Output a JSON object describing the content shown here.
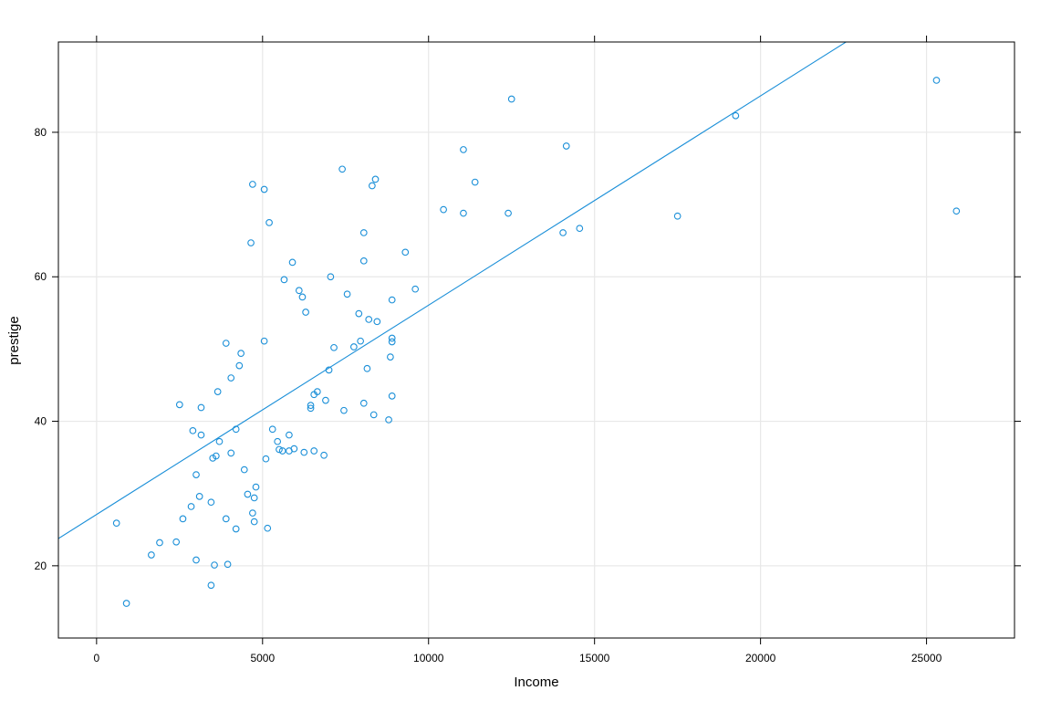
{
  "chart_data": {
    "type": "scatter",
    "title": "",
    "xlabel": "Income",
    "ylabel": "prestige",
    "xlim": [
      -1150,
      27650
    ],
    "ylim": [
      10,
      92.5
    ],
    "x_ticks": [
      0,
      5000,
      10000,
      15000,
      20000,
      25000
    ],
    "x_tick_labels": [
      "0",
      "5000",
      "10000",
      "15000",
      "20000",
      "25000"
    ],
    "y_ticks": [
      20,
      40,
      60,
      80
    ],
    "y_tick_labels": [
      "20",
      "40",
      "60",
      "80"
    ],
    "grid": true,
    "colors": {
      "points": "#1a8fd8",
      "line": "#1a8fd8",
      "grid": "#e8e8e8",
      "frame": "#000000"
    },
    "regression_line": {
      "intercept": 27.1,
      "slope": 0.002897
    },
    "points": [
      {
        "x": 600,
        "y": 25.9
      },
      {
        "x": 900,
        "y": 14.8
      },
      {
        "x": 1650,
        "y": 21.5
      },
      {
        "x": 1900,
        "y": 23.2
      },
      {
        "x": 2400,
        "y": 23.3
      },
      {
        "x": 2500,
        "y": 42.3
      },
      {
        "x": 2600,
        "y": 26.5
      },
      {
        "x": 2850,
        "y": 28.2
      },
      {
        "x": 2900,
        "y": 38.7
      },
      {
        "x": 3000,
        "y": 20.8
      },
      {
        "x": 3000,
        "y": 32.6
      },
      {
        "x": 3100,
        "y": 29.6
      },
      {
        "x": 3150,
        "y": 41.9
      },
      {
        "x": 3150,
        "y": 38.1
      },
      {
        "x": 3450,
        "y": 17.3
      },
      {
        "x": 3450,
        "y": 28.8
      },
      {
        "x": 3500,
        "y": 34.9
      },
      {
        "x": 3550,
        "y": 20.1
      },
      {
        "x": 3600,
        "y": 35.2
      },
      {
        "x": 3650,
        "y": 44.1
      },
      {
        "x": 3700,
        "y": 37.2
      },
      {
        "x": 3900,
        "y": 50.8
      },
      {
        "x": 3900,
        "y": 26.5
      },
      {
        "x": 3950,
        "y": 20.2
      },
      {
        "x": 4050,
        "y": 46.0
      },
      {
        "x": 4050,
        "y": 35.6
      },
      {
        "x": 4200,
        "y": 38.9
      },
      {
        "x": 4200,
        "y": 25.1
      },
      {
        "x": 4300,
        "y": 47.7
      },
      {
        "x": 4350,
        "y": 49.4
      },
      {
        "x": 4450,
        "y": 33.3
      },
      {
        "x": 4550,
        "y": 29.9
      },
      {
        "x": 4650,
        "y": 64.7
      },
      {
        "x": 4700,
        "y": 72.8
      },
      {
        "x": 4700,
        "y": 27.3
      },
      {
        "x": 4750,
        "y": 29.4
      },
      {
        "x": 4750,
        "y": 26.1
      },
      {
        "x": 4800,
        "y": 30.9
      },
      {
        "x": 5050,
        "y": 51.1
      },
      {
        "x": 5050,
        "y": 72.1
      },
      {
        "x": 5100,
        "y": 34.8
      },
      {
        "x": 5150,
        "y": 25.2
      },
      {
        "x": 5200,
        "y": 67.5
      },
      {
        "x": 5300,
        "y": 38.9
      },
      {
        "x": 5450,
        "y": 37.2
      },
      {
        "x": 5500,
        "y": 36.1
      },
      {
        "x": 5600,
        "y": 35.9
      },
      {
        "x": 5650,
        "y": 59.6
      },
      {
        "x": 5800,
        "y": 38.1
      },
      {
        "x": 5800,
        "y": 35.9
      },
      {
        "x": 5900,
        "y": 62.0
      },
      {
        "x": 5950,
        "y": 36.2
      },
      {
        "x": 6100,
        "y": 58.1
      },
      {
        "x": 6200,
        "y": 57.2
      },
      {
        "x": 6250,
        "y": 35.7
      },
      {
        "x": 6300,
        "y": 55.1
      },
      {
        "x": 6450,
        "y": 42.2
      },
      {
        "x": 6450,
        "y": 41.8
      },
      {
        "x": 6550,
        "y": 43.7
      },
      {
        "x": 6550,
        "y": 35.9
      },
      {
        "x": 6650,
        "y": 44.1
      },
      {
        "x": 6850,
        "y": 35.3
      },
      {
        "x": 6900,
        "y": 42.9
      },
      {
        "x": 7000,
        "y": 47.1
      },
      {
        "x": 7050,
        "y": 60.0
      },
      {
        "x": 7150,
        "y": 50.2
      },
      {
        "x": 7400,
        "y": 74.9
      },
      {
        "x": 7450,
        "y": 41.5
      },
      {
        "x": 7550,
        "y": 57.6
      },
      {
        "x": 7750,
        "y": 50.3
      },
      {
        "x": 7900,
        "y": 54.9
      },
      {
        "x": 7950,
        "y": 51.1
      },
      {
        "x": 8050,
        "y": 66.1
      },
      {
        "x": 8050,
        "y": 62.2
      },
      {
        "x": 8050,
        "y": 42.5
      },
      {
        "x": 8150,
        "y": 47.3
      },
      {
        "x": 8200,
        "y": 54.1
      },
      {
        "x": 8300,
        "y": 72.6
      },
      {
        "x": 8350,
        "y": 40.9
      },
      {
        "x": 8400,
        "y": 73.5
      },
      {
        "x": 8450,
        "y": 53.8
      },
      {
        "x": 8800,
        "y": 40.2
      },
      {
        "x": 8850,
        "y": 48.9
      },
      {
        "x": 8900,
        "y": 56.8
      },
      {
        "x": 8900,
        "y": 51.0
      },
      {
        "x": 8900,
        "y": 51.5
      },
      {
        "x": 8900,
        "y": 43.5
      },
      {
        "x": 9300,
        "y": 63.4
      },
      {
        "x": 9600,
        "y": 58.3
      },
      {
        "x": 10450,
        "y": 69.3
      },
      {
        "x": 11050,
        "y": 77.6
      },
      {
        "x": 11050,
        "y": 68.8
      },
      {
        "x": 11400,
        "y": 73.1
      },
      {
        "x": 12400,
        "y": 68.8
      },
      {
        "x": 12500,
        "y": 84.6
      },
      {
        "x": 14050,
        "y": 66.1
      },
      {
        "x": 14150,
        "y": 78.1
      },
      {
        "x": 14550,
        "y": 66.7
      },
      {
        "x": 17500,
        "y": 68.4
      },
      {
        "x": 19250,
        "y": 82.3
      },
      {
        "x": 25300,
        "y": 87.2
      },
      {
        "x": 25900,
        "y": 69.1
      }
    ]
  }
}
